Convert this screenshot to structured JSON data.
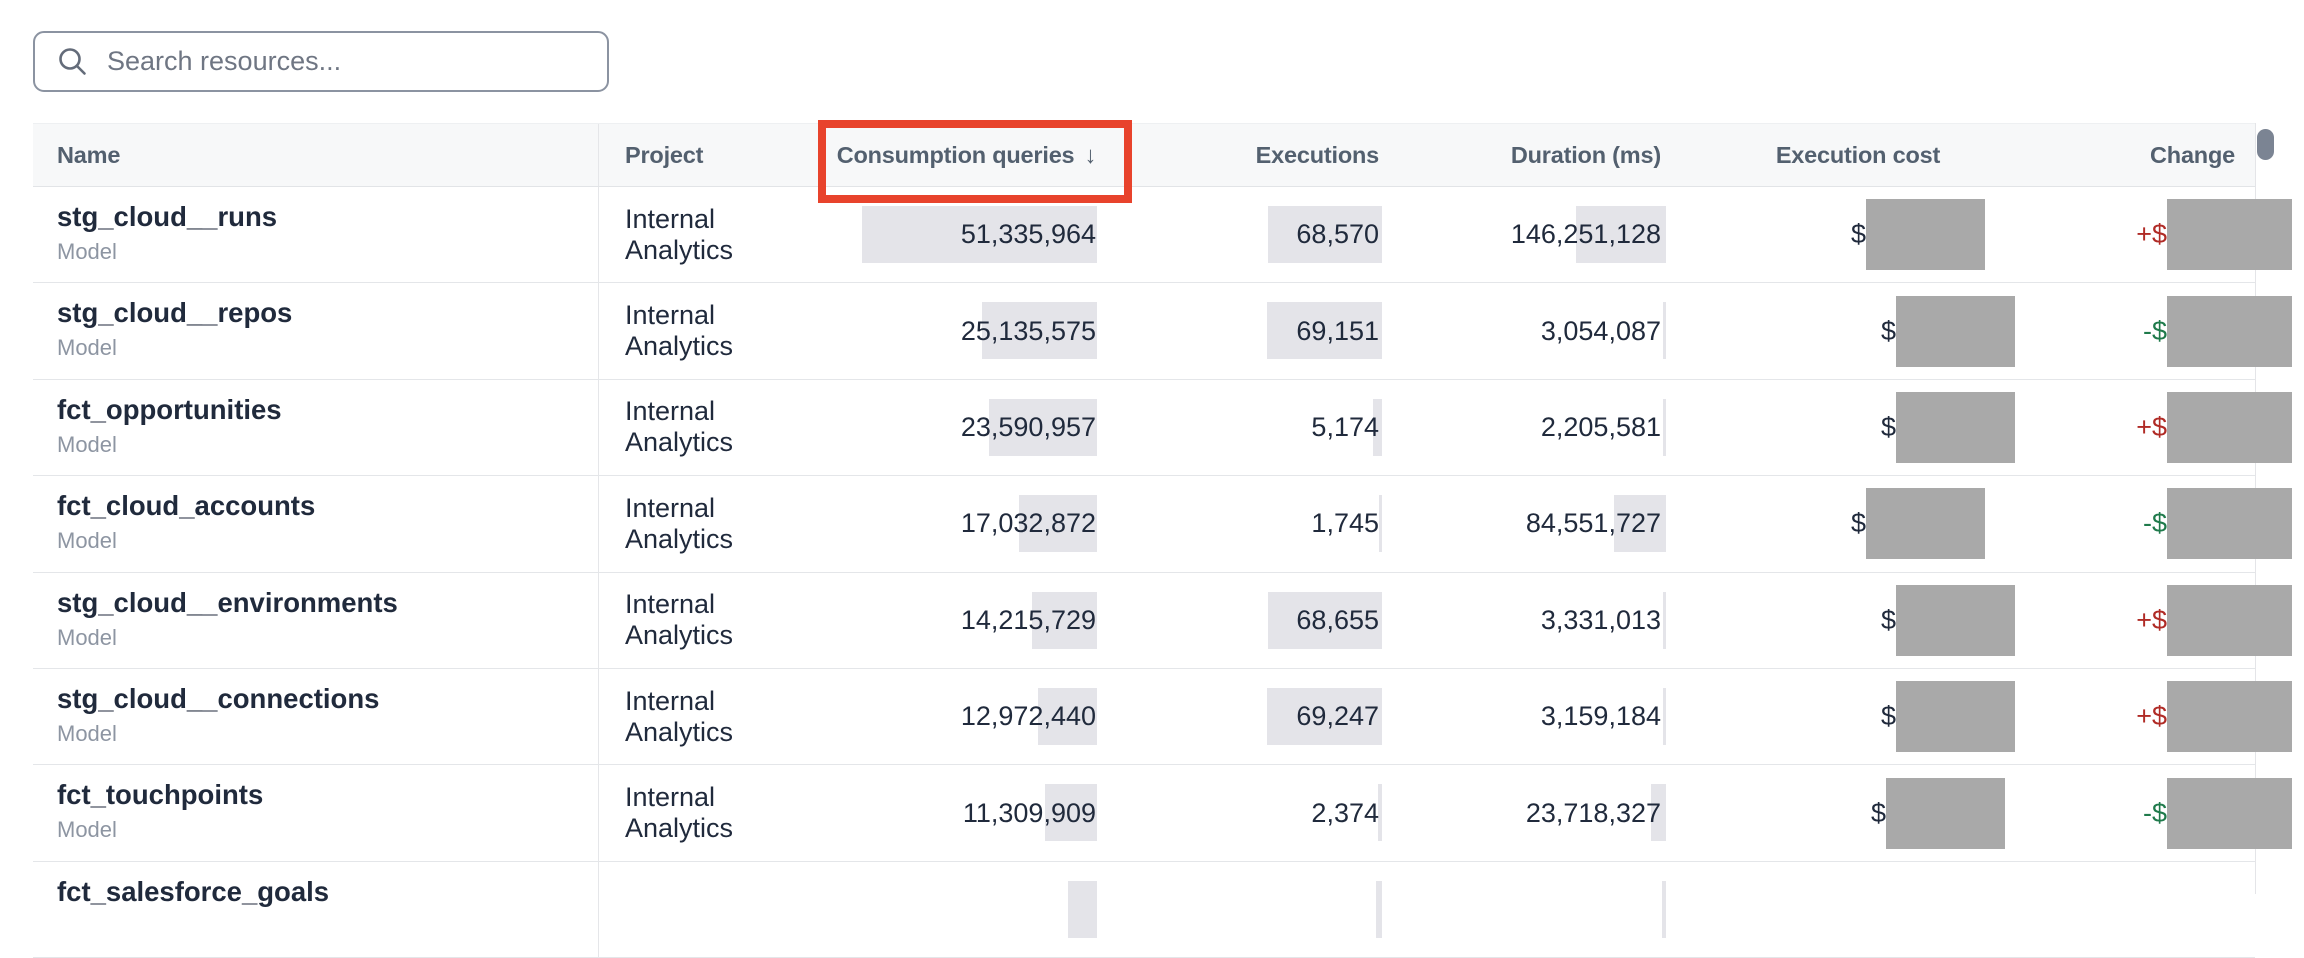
{
  "search": {
    "placeholder": "Search resources..."
  },
  "table": {
    "columns": [
      {
        "id": "name",
        "label": "Name",
        "align": "left"
      },
      {
        "id": "project",
        "label": "Project",
        "align": "left"
      },
      {
        "id": "consumption_queries",
        "label": "Consumption queries",
        "align": "right",
        "sorted": "desc",
        "sort_arrow": "↓",
        "highlighted": true
      },
      {
        "id": "executions",
        "label": "Executions",
        "align": "right"
      },
      {
        "id": "duration_ms",
        "label": "Duration (ms)",
        "align": "right"
      },
      {
        "id": "execution_cost",
        "label": "Execution cost",
        "align": "center"
      },
      {
        "id": "change",
        "label": "Change",
        "align": "right"
      }
    ],
    "rows": [
      {
        "name": "stg_cloud__runs",
        "type": "Model",
        "project": "Internal Analytics",
        "consumption_queries": "51,335,964",
        "executions": "68,570",
        "duration_ms": "146,251,128",
        "cost_prefix": "$",
        "change_prefix": "+$",
        "cost_redacted": true,
        "change_redacted": true,
        "bars": {
          "consumption": 235,
          "executions": 114,
          "duration": 90
        },
        "cost_box_shift": 30
      },
      {
        "name": "stg_cloud__repos",
        "type": "Model",
        "project": "Internal Analytics",
        "consumption_queries": "25,135,575",
        "executions": "69,151",
        "duration_ms": "3,054,087",
        "cost_prefix": "$",
        "change_prefix": "-$",
        "cost_redacted": true,
        "change_redacted": true,
        "bars": {
          "consumption": 115,
          "executions": 115,
          "duration": 3
        },
        "cost_box_shift": 0
      },
      {
        "name": "fct_opportunities",
        "type": "Model",
        "project": "Internal Analytics",
        "consumption_queries": "23,590,957",
        "executions": "5,174",
        "duration_ms": "2,205,581",
        "cost_prefix": "$",
        "change_prefix": "+$",
        "cost_redacted": true,
        "change_redacted": true,
        "bars": {
          "consumption": 108,
          "executions": 9,
          "duration": 3
        },
        "cost_box_shift": 0
      },
      {
        "name": "fct_cloud_accounts",
        "type": "Model",
        "project": "Internal Analytics",
        "consumption_queries": "17,032,872",
        "executions": "1,745",
        "duration_ms": "84,551,727",
        "cost_prefix": "$",
        "change_prefix": "-$",
        "cost_redacted": true,
        "change_redacted": true,
        "bars": {
          "consumption": 78,
          "executions": 3,
          "duration": 52
        },
        "cost_box_shift": 30
      },
      {
        "name": "stg_cloud__environments",
        "type": "Model",
        "project": "Internal Analytics",
        "consumption_queries": "14,215,729",
        "executions": "68,655",
        "duration_ms": "3,331,013",
        "cost_prefix": "$",
        "change_prefix": "+$",
        "cost_redacted": true,
        "change_redacted": true,
        "bars": {
          "consumption": 65,
          "executions": 114,
          "duration": 3
        },
        "cost_box_shift": 0
      },
      {
        "name": "stg_cloud__connections",
        "type": "Model",
        "project": "Internal Analytics",
        "consumption_queries": "12,972,440",
        "executions": "69,247",
        "duration_ms": "3,159,184",
        "cost_prefix": "$",
        "change_prefix": "+$",
        "cost_redacted": true,
        "change_redacted": true,
        "bars": {
          "consumption": 59,
          "executions": 115,
          "duration": 3
        },
        "cost_box_shift": 0
      },
      {
        "name": "fct_touchpoints",
        "type": "Model",
        "project": "Internal Analytics",
        "consumption_queries": "11,309,909",
        "executions": "2,374",
        "duration_ms": "23,718,327",
        "cost_prefix": "$",
        "change_prefix": "-$",
        "cost_redacted": true,
        "change_redacted": true,
        "bars": {
          "consumption": 52,
          "executions": 4,
          "duration": 15
        },
        "cost_box_shift": 10
      },
      {
        "name": "fct_salesforce_goals",
        "type": "",
        "project": "",
        "consumption_queries": "",
        "executions": "",
        "duration_ms": "",
        "cost_prefix": "",
        "change_prefix": "",
        "cost_redacted": false,
        "change_redacted": false,
        "bars": {
          "consumption": 29,
          "executions": 6,
          "duration": 4
        },
        "cost_box_shift": 0
      }
    ]
  },
  "annotation": {
    "type": "highlight-box",
    "shape": "rectangle",
    "color": "#E8432C",
    "target": "consumption-queries-header"
  },
  "redaction": {
    "color": "#A9A9A9",
    "fields": [
      "execution_cost",
      "change"
    ]
  },
  "colors": {
    "header_bg": "#F7F8F9",
    "text_dark": "#202A3C",
    "text_muted": "#8D95A2",
    "header_text": "#53606F",
    "databar": "#E4E4E9",
    "positive_change": "#B02B26",
    "negative_change": "#1F7A4B",
    "divider": "#E4E6E9",
    "scrollbar_thumb": "#7B8493"
  }
}
